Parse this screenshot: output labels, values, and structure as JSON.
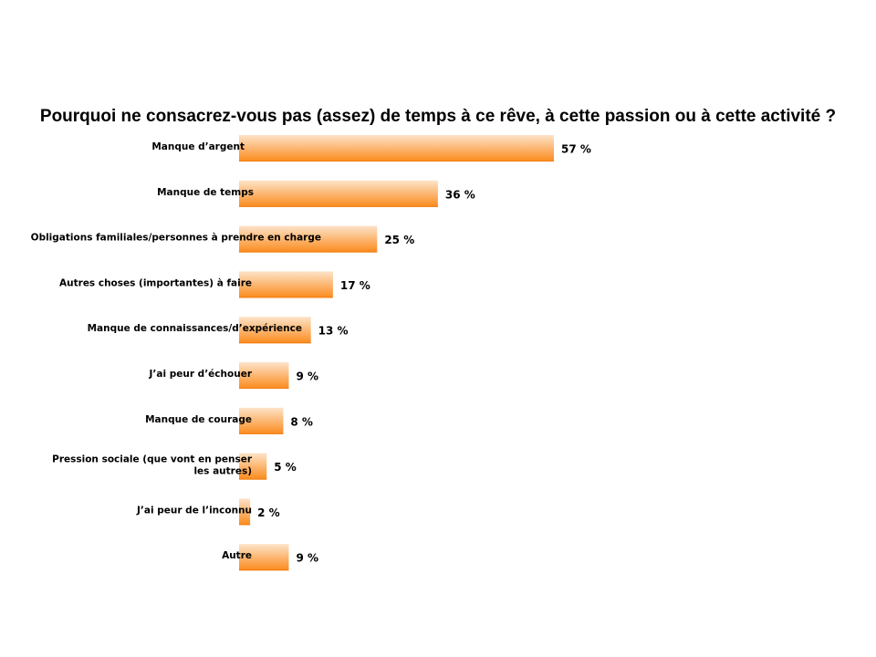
{
  "chart_data": {
    "type": "bar",
    "orientation": "horizontal",
    "title": "Pourquoi ne consacrez-vous pas (assez) de temps à ce rêve, à cette passion ou à cette activité ?",
    "categories": [
      "Manque d’argent",
      "Manque de temps",
      "Obligations familiales/personnes à prendre en charge",
      "Autres choses (importantes) à faire",
      "Manque de connaissances/d’expérience",
      "J’ai peur d’échouer",
      "Manque de courage",
      "Pression sociale (que vont en penser les autres)",
      "J’ai peur de l’inconnu",
      "Autre"
    ],
    "values": [
      57,
      36,
      25,
      17,
      13,
      9,
      8,
      5,
      2,
      9
    ],
    "value_labels": [
      "57 %",
      "36 %",
      "25 %",
      "17 %",
      "13 %",
      "9 %",
      "8 %",
      "5 %",
      "2 %",
      "9 %"
    ],
    "unit": "%",
    "xlim": [
      0,
      57
    ],
    "grid": false,
    "legend": "none",
    "colors": {
      "bar_top": "#fde3c8",
      "bar_bottom": "#fb8a1c",
      "bar_edge": "#f07d10"
    }
  }
}
